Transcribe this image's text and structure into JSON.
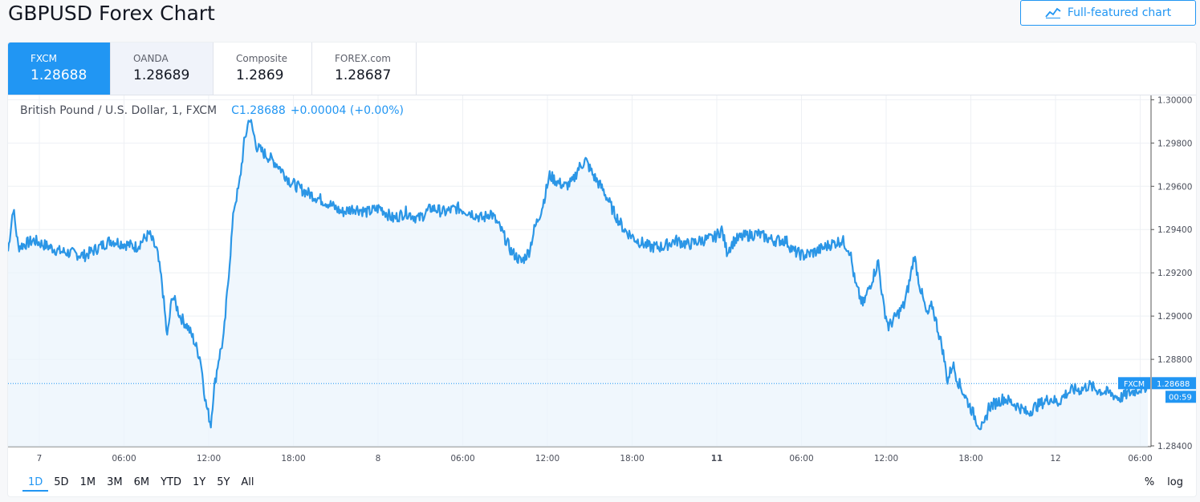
{
  "page_title": "GBPUSD Forex Chart",
  "full_featured_button": "Full-featured chart",
  "tabs": [
    {
      "name": "FXCM",
      "value": "1.28688"
    },
    {
      "name": "OANDA",
      "value": "1.28689"
    },
    {
      "name": "Composite",
      "value": "1.2869"
    },
    {
      "name": "FOREX.com",
      "value": "1.28687"
    }
  ],
  "legend": {
    "symbol": "British Pound / U.S. Dollar, 1, FXCM",
    "close": "C1.28688",
    "change": "+0.00004 (+0.00%)"
  },
  "price_label": {
    "source": "FXCM",
    "price": "1.28688",
    "countdown": "00:59"
  },
  "ranges": [
    "1D",
    "5D",
    "1M",
    "3M",
    "6M",
    "YTD",
    "1Y",
    "5Y",
    "All"
  ],
  "active_range": "1D",
  "options": {
    "percent": "%",
    "log": "log"
  },
  "colors": {
    "accent": "#2196f3",
    "line": "#2b96e6",
    "fill": "#eaf4fc"
  },
  "chart_data": {
    "type": "area",
    "series": [
      {
        "values": [
          [
            0,
            1.293
          ],
          [
            2,
            1.295
          ],
          [
            4,
            1.2932
          ],
          [
            10,
            1.2935
          ],
          [
            20,
            1.293
          ],
          [
            30,
            1.2928
          ],
          [
            40,
            1.2935
          ],
          [
            50,
            1.2932
          ],
          [
            55,
            1.2938
          ],
          [
            58,
            1.293
          ],
          [
            60,
            1.2915
          ],
          [
            62,
            1.289
          ],
          [
            64,
            1.291
          ],
          [
            67,
            1.29
          ],
          [
            70,
            1.2895
          ],
          [
            72,
            1.289
          ],
          [
            75,
            1.288
          ],
          [
            77,
            1.286
          ],
          [
            79,
            1.285
          ],
          [
            80,
            1.2864
          ],
          [
            82,
            1.288
          ],
          [
            84,
            1.289
          ],
          [
            86,
            1.292
          ],
          [
            88,
            1.295
          ],
          [
            90,
            1.296
          ],
          [
            92,
            1.298
          ],
          [
            94,
            1.2992
          ],
          [
            97,
            1.2978
          ],
          [
            100,
            1.2975
          ],
          [
            105,
            1.297
          ],
          [
            110,
            1.2962
          ],
          [
            115,
            1.2958
          ],
          [
            120,
            1.2955
          ],
          [
            125,
            1.2952
          ],
          [
            130,
            1.2948
          ],
          [
            135,
            1.295
          ],
          [
            140,
            1.2948
          ],
          [
            145,
            1.295
          ],
          [
            150,
            1.2945
          ],
          [
            155,
            1.2948
          ],
          [
            160,
            1.2945
          ],
          [
            165,
            1.295
          ],
          [
            170,
            1.2948
          ],
          [
            175,
            1.295
          ],
          [
            180,
            1.2948
          ],
          [
            185,
            1.2945
          ],
          [
            188,
            1.2948
          ],
          [
            192,
            1.294
          ],
          [
            196,
            1.293
          ],
          [
            200,
            1.2925
          ],
          [
            203,
            1.293
          ],
          [
            205,
            1.294
          ],
          [
            208,
            1.295
          ],
          [
            211,
            1.2965
          ],
          [
            214,
            1.2962
          ],
          [
            217,
            1.296
          ],
          [
            220,
            1.2962
          ],
          [
            222,
            1.2968
          ],
          [
            225,
            1.2972
          ],
          [
            228,
            1.2965
          ],
          [
            232,
            1.2958
          ],
          [
            236,
            1.2948
          ],
          [
            240,
            1.294
          ],
          [
            245,
            1.2935
          ],
          [
            250,
            1.2932
          ],
          [
            255,
            1.2932
          ],
          [
            260,
            1.2935
          ],
          [
            265,
            1.2933
          ],
          [
            270,
            1.2935
          ],
          [
            275,
            1.2936
          ],
          [
            278,
            1.294
          ],
          [
            280,
            1.293
          ],
          [
            283,
            1.2935
          ],
          [
            287,
            1.2937
          ],
          [
            292,
            1.2938
          ],
          [
            298,
            1.2935
          ],
          [
            303,
            1.2935
          ],
          [
            306,
            1.293
          ],
          [
            310,
            1.2928
          ],
          [
            315,
            1.293
          ],
          [
            320,
            1.2933
          ],
          [
            325,
            1.2935
          ],
          [
            328,
            1.293
          ],
          [
            330,
            1.2915
          ],
          [
            333,
            1.2905
          ],
          [
            336,
            1.2915
          ],
          [
            339,
            1.2925
          ],
          [
            341,
            1.2905
          ],
          [
            343,
            1.2895
          ],
          [
            346,
            1.29
          ],
          [
            349,
            1.2905
          ],
          [
            351,
            1.2915
          ],
          [
            353,
            1.2928
          ],
          [
            355,
            1.2915
          ],
          [
            358,
            1.29
          ],
          [
            360,
            1.2905
          ],
          [
            362,
            1.2895
          ],
          [
            364,
            1.2885
          ],
          [
            366,
            1.287
          ],
          [
            368,
            1.2878
          ],
          [
            370,
            1.287
          ],
          [
            372,
            1.2865
          ],
          [
            374,
            1.286
          ],
          [
            376,
            1.2855
          ],
          [
            378,
            1.285
          ],
          [
            380,
            1.2848
          ],
          [
            382,
            1.2858
          ],
          [
            385,
            1.286
          ],
          [
            388,
            1.2862
          ],
          [
            391,
            1.286
          ],
          [
            394,
            1.2858
          ],
          [
            397,
            1.2855
          ],
          [
            400,
            1.2858
          ],
          [
            403,
            1.286
          ],
          [
            406,
            1.2862
          ],
          [
            409,
            1.286
          ],
          [
            412,
            1.2864
          ],
          [
            415,
            1.2866
          ],
          [
            418,
            1.2866
          ],
          [
            421,
            1.2868
          ],
          [
            424,
            1.2866
          ],
          [
            427,
            1.2865
          ],
          [
            430,
            1.2864
          ],
          [
            433,
            1.2862
          ],
          [
            436,
            1.2864
          ],
          [
            440,
            1.2866
          ],
          [
            444,
            1.2868
          ]
        ]
      }
    ],
    "x_tick_labels": [
      "7",
      "06:00",
      "12:00",
      "18:00",
      "8",
      "06:00",
      "12:00",
      "18:00",
      "11",
      "06:00",
      "12:00",
      "18:00",
      "12",
      "06:00"
    ],
    "y_tick_labels": [
      "1.30000",
      "1.29800",
      "1.29600",
      "1.29400",
      "1.29200",
      "1.29000",
      "1.28800",
      "1.28400"
    ],
    "ylim": [
      1.284,
      1.3002
    ],
    "current_price": 1.28688,
    "grid": true
  }
}
